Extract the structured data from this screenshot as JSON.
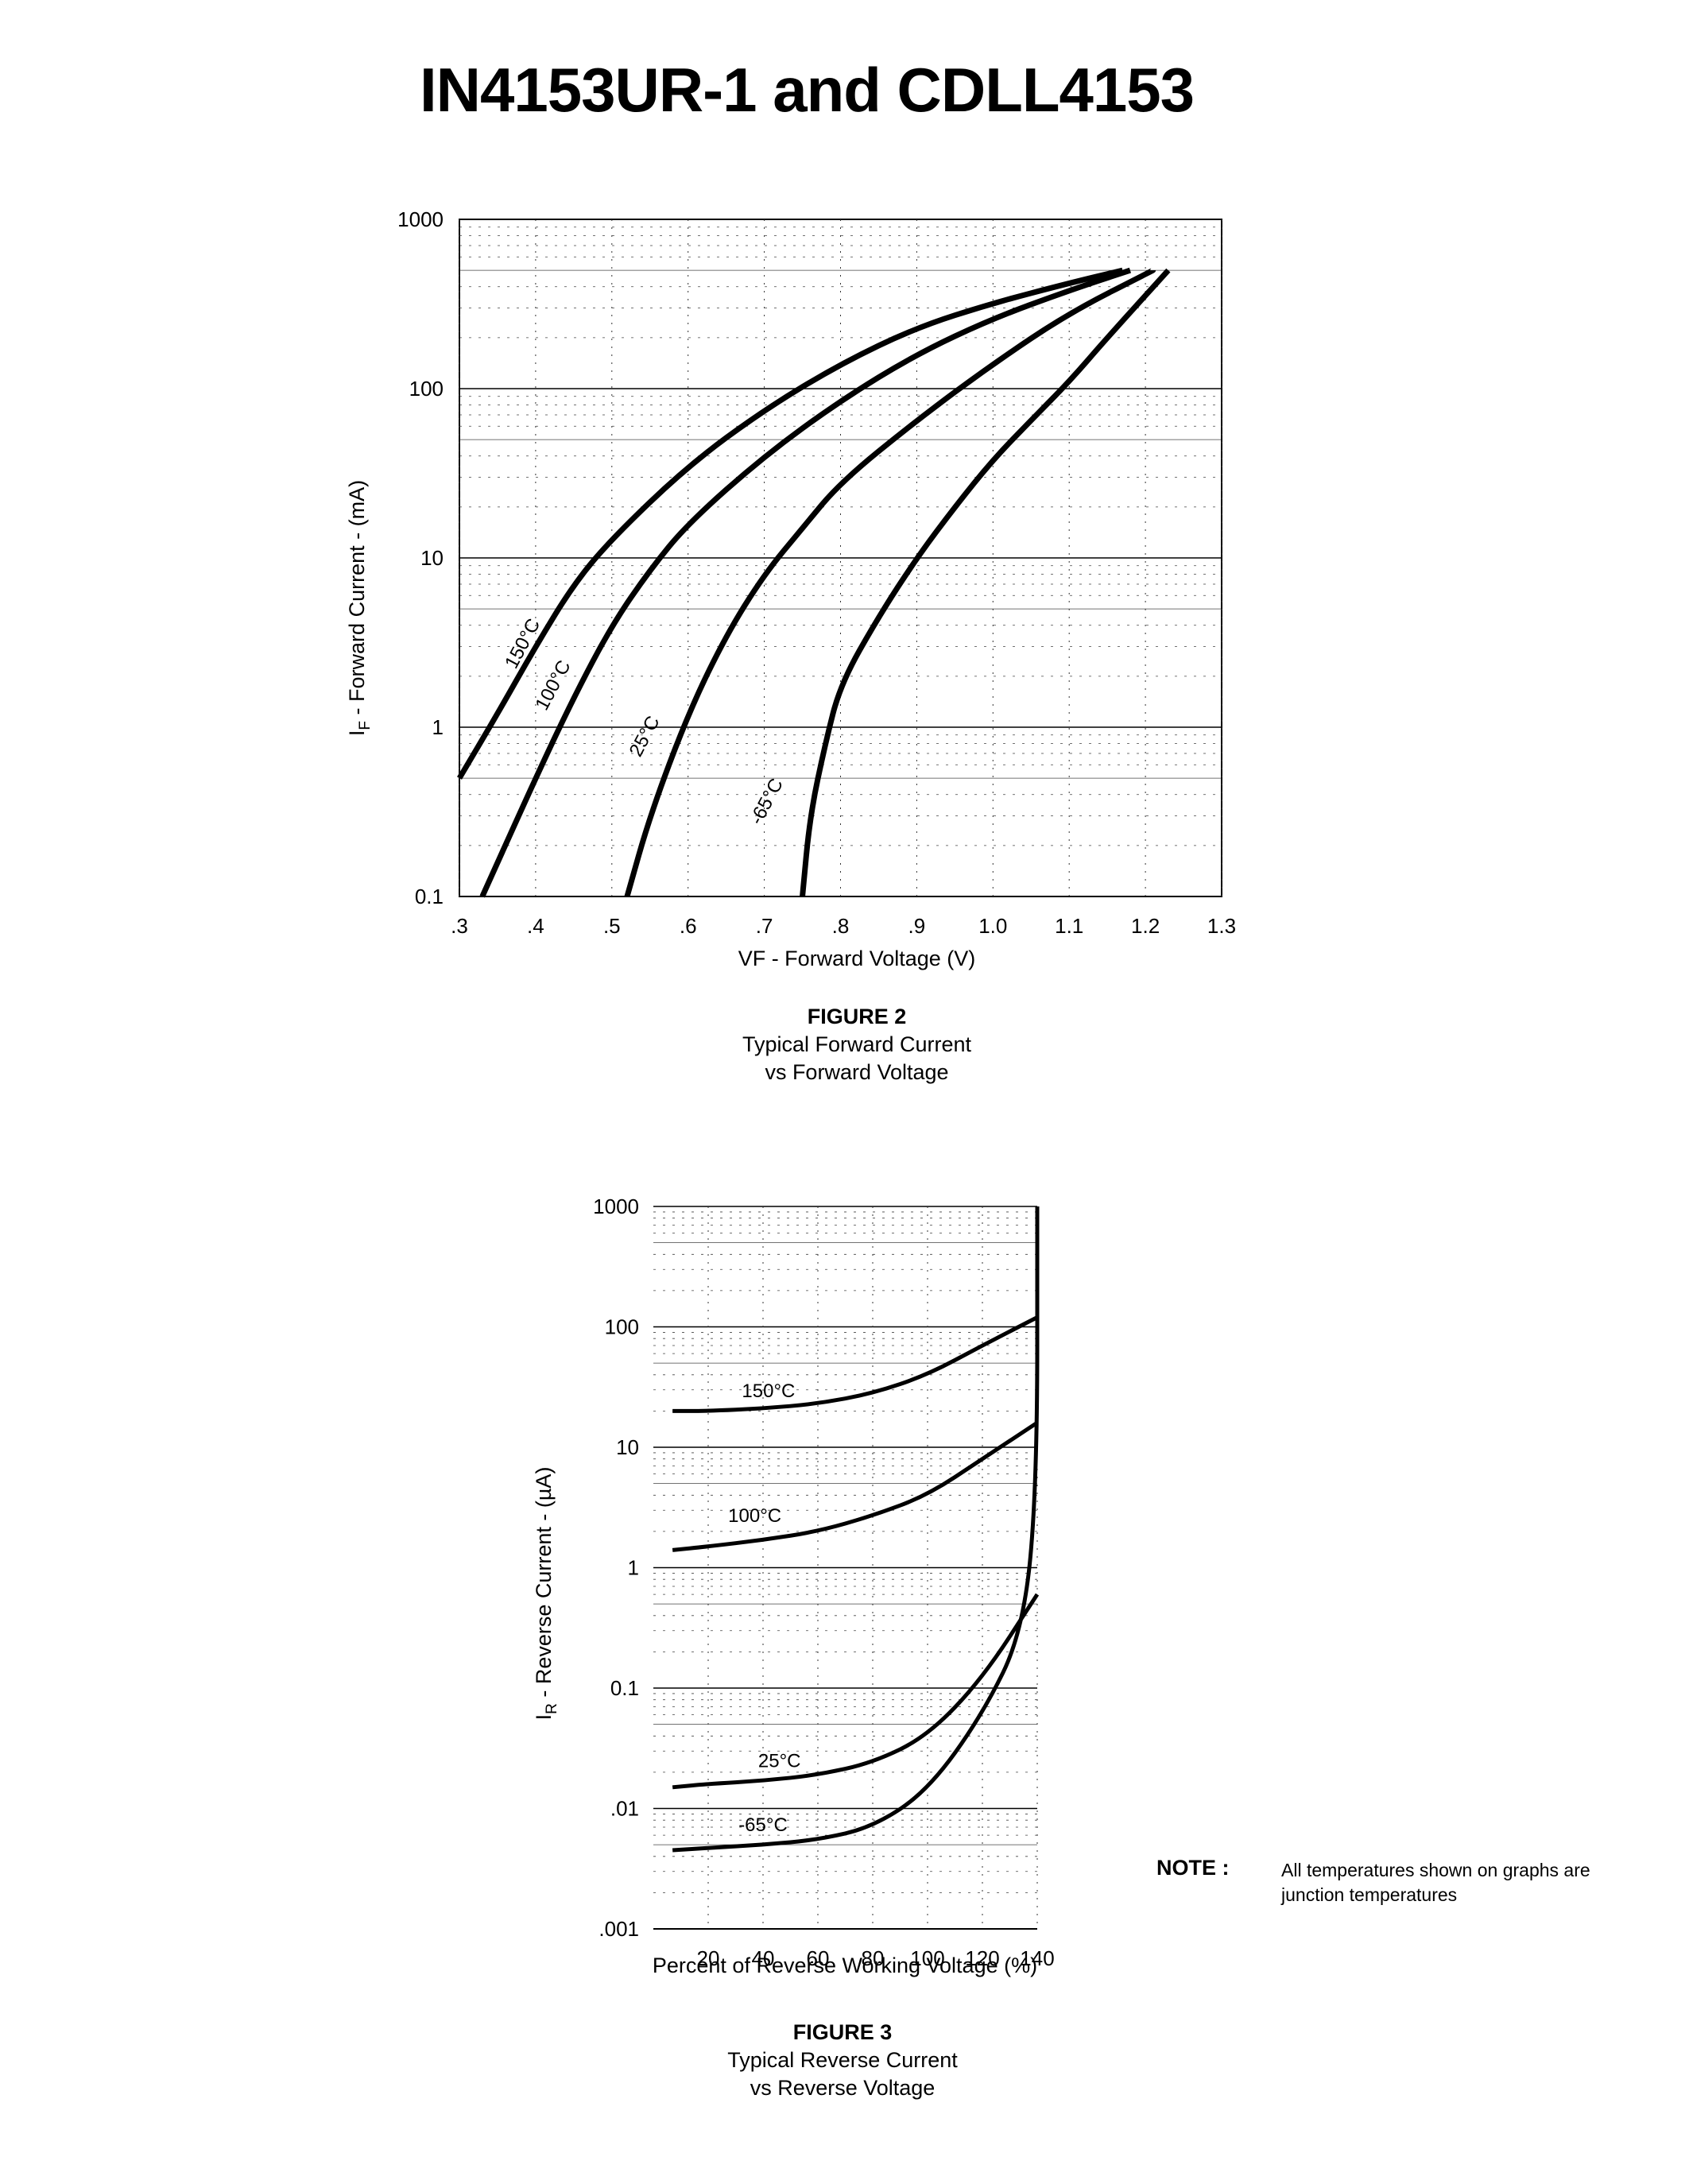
{
  "title": "IN4153UR-1 and CDLL4153",
  "colors": {
    "ink": "#000000",
    "background": "#ffffff"
  },
  "figure2": {
    "caption_number": "FIGURE 2",
    "caption_line1": "Typical Forward Current",
    "caption_line2": "vs Forward Voltage"
  },
  "figure3": {
    "caption_number": "FIGURE 3",
    "caption_line1": "Typical Reverse Current",
    "caption_line2": "vs Reverse Voltage"
  },
  "note": {
    "label": "NOTE :",
    "line1": "All temperatures shown on graphs are",
    "line2": "junction temperatures"
  },
  "chart_data": [
    {
      "type": "line",
      "y_scale": "log",
      "xlabel": "VF - Forward Voltage (V)",
      "ylabel_main": "I",
      "ylabel_sub": "F",
      "ylabel_rest": " - Forward Current - (mA)",
      "xlim": [
        0.3,
        1.3
      ],
      "ylim": [
        0.1,
        1000
      ],
      "x_ticks": [
        0.3,
        0.4,
        0.5,
        0.6,
        0.7,
        0.8,
        0.9,
        1.0,
        1.1,
        1.2,
        1.3
      ],
      "x_tick_labels": [
        ".3",
        ".4",
        ".5",
        ".6",
        ".7",
        ".8",
        ".9",
        "1.0",
        "1.1",
        "1.2",
        "1.3"
      ],
      "y_ticks": [
        0.1,
        1,
        10,
        100,
        1000
      ],
      "y_tick_labels": [
        "0.1",
        "1",
        "10",
        "100",
        "1000"
      ],
      "grid": true,
      "series": [
        {
          "name": "150°C",
          "label_at": [
            0.39,
            3.0
          ],
          "points": [
            [
              0.3,
              0.5
            ],
            [
              0.35,
              1.2
            ],
            [
              0.4,
              3.0
            ],
            [
              0.45,
              7.0
            ],
            [
              0.5,
              13
            ],
            [
              0.6,
              35
            ],
            [
              0.7,
              75
            ],
            [
              0.8,
              140
            ],
            [
              0.9,
              230
            ],
            [
              1.0,
              320
            ],
            [
              1.1,
              420
            ],
            [
              1.17,
              500
            ]
          ]
        },
        {
          "name": "100°C",
          "label_at": [
            0.43,
            1.7
          ],
          "points": [
            [
              0.33,
              0.1
            ],
            [
              0.4,
              0.5
            ],
            [
              0.45,
              1.5
            ],
            [
              0.5,
              4.0
            ],
            [
              0.55,
              8.5
            ],
            [
              0.6,
              16
            ],
            [
              0.7,
              40
            ],
            [
              0.8,
              85
            ],
            [
              0.9,
              160
            ],
            [
              1.0,
              260
            ],
            [
              1.1,
              380
            ],
            [
              1.18,
              500
            ]
          ]
        },
        {
          "name": "25°C",
          "label_at": [
            0.55,
            0.85
          ],
          "points": [
            [
              0.52,
              0.1
            ],
            [
              0.55,
              0.3
            ],
            [
              0.6,
              1.2
            ],
            [
              0.65,
              3.5
            ],
            [
              0.7,
              8.0
            ],
            [
              0.75,
              15
            ],
            [
              0.8,
              28
            ],
            [
              0.9,
              65
            ],
            [
              1.0,
              140
            ],
            [
              1.1,
              280
            ],
            [
              1.21,
              500
            ]
          ]
        },
        {
          "name": "-65°C",
          "label_at": [
            0.71,
            0.35
          ],
          "points": [
            [
              0.75,
              0.1
            ],
            [
              0.76,
              0.3
            ],
            [
              0.78,
              0.8
            ],
            [
              0.8,
              1.8
            ],
            [
              0.85,
              4.5
            ],
            [
              0.9,
              10
            ],
            [
              0.95,
              20
            ],
            [
              1.0,
              38
            ],
            [
              1.05,
              65
            ],
            [
              1.1,
              110
            ],
            [
              1.15,
              200
            ],
            [
              1.23,
              500
            ]
          ]
        }
      ]
    },
    {
      "type": "line",
      "y_scale": "log",
      "xlabel": "Percent of Reverse Working Voltage (%)",
      "ylabel_main": "I",
      "ylabel_sub": "R",
      "ylabel_rest": " - Reverse Current - (µA)",
      "xlim": [
        0,
        140
      ],
      "ylim": [
        0.001,
        1000
      ],
      "x_ticks": [
        20,
        40,
        60,
        80,
        100,
        120,
        140
      ],
      "x_tick_labels": [
        "20",
        "40",
        "60",
        "80",
        "100",
        "120",
        "140"
      ],
      "y_ticks": [
        0.001,
        0.01,
        0.1,
        1,
        10,
        100,
        1000
      ],
      "y_tick_labels": [
        ".001",
        ".01",
        "0.1",
        "1",
        "10",
        "100",
        "1000"
      ],
      "grid": true,
      "series": [
        {
          "name": "150°C",
          "label_at": [
            42,
            26
          ],
          "points": [
            [
              7,
              20
            ],
            [
              20,
              20
            ],
            [
              40,
              21
            ],
            [
              60,
              23
            ],
            [
              80,
              28
            ],
            [
              100,
              40
            ],
            [
              120,
              70
            ],
            [
              140,
              120
            ]
          ]
        },
        {
          "name": "100°C",
          "label_at": [
            37,
            2.4
          ],
          "points": [
            [
              7,
              1.4
            ],
            [
              20,
              1.5
            ],
            [
              40,
              1.7
            ],
            [
              60,
              2.0
            ],
            [
              80,
              2.7
            ],
            [
              100,
              4.0
            ],
            [
              120,
              8.0
            ],
            [
              140,
              16
            ]
          ]
        },
        {
          "name": "25°C",
          "label_at": [
            46,
            0.022
          ],
          "points": [
            [
              7,
              0.015
            ],
            [
              20,
              0.016
            ],
            [
              40,
              0.017
            ],
            [
              60,
              0.019
            ],
            [
              80,
              0.024
            ],
            [
              100,
              0.04
            ],
            [
              120,
              0.12
            ],
            [
              140,
              0.6
            ]
          ]
        },
        {
          "name": "-65°C",
          "label_at": [
            40,
            0.0065
          ],
          "points": [
            [
              7,
              0.0045
            ],
            [
              20,
              0.0047
            ],
            [
              40,
              0.005
            ],
            [
              60,
              0.0055
            ],
            [
              80,
              0.007
            ],
            [
              100,
              0.014
            ],
            [
              120,
              0.06
            ],
            [
              135,
              0.3
            ],
            [
              140,
              5
            ],
            [
              140,
              1000
            ]
          ]
        }
      ]
    }
  ]
}
